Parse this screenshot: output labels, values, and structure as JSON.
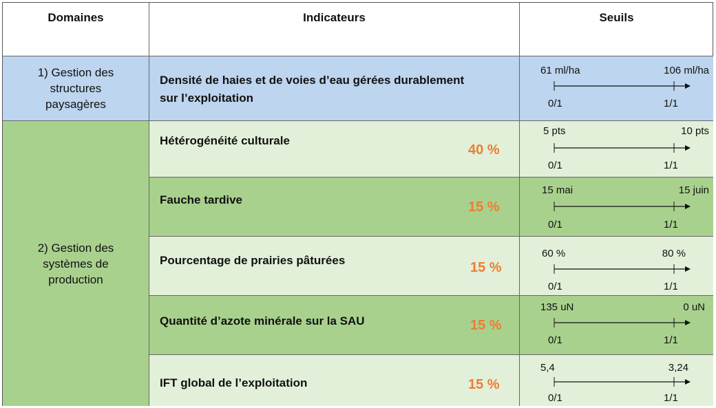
{
  "headers": {
    "domaines": "Domaines",
    "indicateurs": "Indicateurs",
    "seuils": "Seuils"
  },
  "colors": {
    "blue": "#bdd5ee",
    "light_green": "#e2f0d9",
    "green": "#a9d18e",
    "accent": "#ee7d31"
  },
  "domains": [
    {
      "label": "1) Gestion des structures paysagères"
    },
    {
      "label": "2) Gestion des systèmes de production"
    }
  ],
  "rows": [
    {
      "indicator": "Densité de haies et de voies d’eau gérées durablement sur l’exploitation",
      "weight": "",
      "left": "61 ml/ha",
      "right": "106 ml/ha",
      "score_left": "0/1",
      "score_right": "1/1"
    },
    {
      "indicator": "Hétérogénéité culturale",
      "weight": "40 %",
      "left": "5 pts",
      "right": "10 pts",
      "score_left": "0/1",
      "score_right": "1/1"
    },
    {
      "indicator": "Fauche tardive",
      "weight": "15 %",
      "left": "15 mai",
      "right": "15 juin",
      "score_left": "0/1",
      "score_right": "1/1"
    },
    {
      "indicator": "Pourcentage de prairies pâturées",
      "weight": "15 %",
      "left": "60 %",
      "right": "80 %",
      "score_left": "0/1",
      "score_right": "1/1"
    },
    {
      "indicator": "Quantité d’azote minérale sur la SAU",
      "weight": "15 %",
      "left": "135 uN",
      "right": "0 uN",
      "score_left": "0/1",
      "score_right": "1/1"
    },
    {
      "indicator": "IFT global de l’exploitation",
      "weight": "15 %",
      "left": "5,4",
      "right": "3,24",
      "score_left": "0/1",
      "score_right": "1/1"
    }
  ]
}
